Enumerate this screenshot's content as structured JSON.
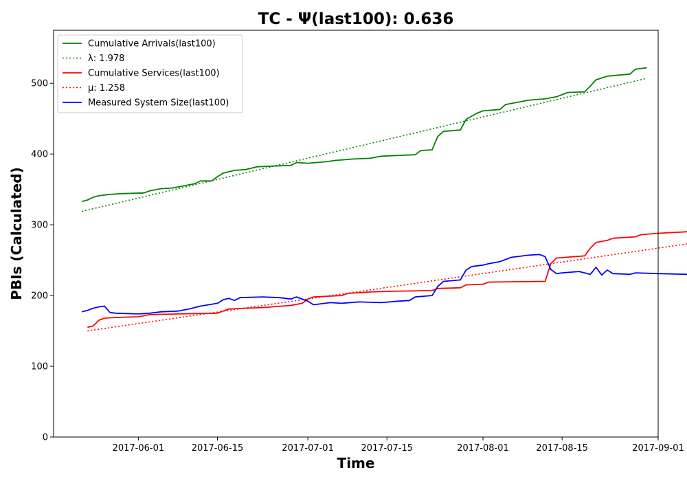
{
  "chart_data": {
    "type": "line",
    "title": "TC -  Ψ(last100): 0.636",
    "xlabel": "Time",
    "ylabel": "PBIs (Calculated)",
    "xlim": [
      "2017-05-17",
      "2017-09-01"
    ],
    "ylim": [
      0,
      575
    ],
    "x_ticks": [
      "2017-06-01",
      "2017-06-15",
      "2017-07-01",
      "2017-07-15",
      "2017-08-01",
      "2017-08-15",
      "2017-09-01"
    ],
    "y_ticks": [
      0,
      100,
      200,
      300,
      400,
      500
    ],
    "grid": false,
    "legend_position": "top-left",
    "legend": [
      {
        "label": "Cumulative Arrivals(last100)",
        "color": "#008000",
        "style": "solid"
      },
      {
        "label": "λ: 1.978",
        "color": "#008000",
        "style": "dotted"
      },
      {
        "label": "Cumulative Services(last100)",
        "color": "#ff0000",
        "style": "solid"
      },
      {
        "label": "μ: 1.258",
        "color": "#ff0000",
        "style": "dotted"
      },
      {
        "label": "Measured System Size(last100)",
        "color": "#0000ff",
        "style": "solid"
      }
    ],
    "series": [
      {
        "name": "Cumulative Arrivals(last100)",
        "color": "#008000",
        "style": "solid",
        "points": [
          [
            "2017-05-22",
            333
          ],
          [
            "2017-05-23",
            335
          ],
          [
            "2017-05-24",
            339
          ],
          [
            "2017-05-25",
            341
          ],
          [
            "2017-05-27",
            343
          ],
          [
            "2017-05-29",
            344
          ],
          [
            "2017-06-02",
            345
          ],
          [
            "2017-06-03",
            348
          ],
          [
            "2017-06-05",
            351
          ],
          [
            "2017-06-07",
            352
          ],
          [
            "2017-06-09",
            355
          ],
          [
            "2017-06-11",
            358
          ],
          [
            "2017-06-12",
            362
          ],
          [
            "2017-06-14",
            362
          ],
          [
            "2017-06-15",
            368
          ],
          [
            "2017-06-16",
            373
          ],
          [
            "2017-06-18",
            377
          ],
          [
            "2017-06-20",
            378
          ],
          [
            "2017-06-22",
            382
          ],
          [
            "2017-06-25",
            383
          ],
          [
            "2017-06-28",
            384
          ],
          [
            "2017-06-29",
            388
          ],
          [
            "2017-07-01",
            387
          ],
          [
            "2017-07-04",
            389
          ],
          [
            "2017-07-06",
            391
          ],
          [
            "2017-07-09",
            393
          ],
          [
            "2017-07-12",
            394
          ],
          [
            "2017-07-14",
            397
          ],
          [
            "2017-07-17",
            398
          ],
          [
            "2017-07-20",
            399
          ],
          [
            "2017-07-21",
            405
          ],
          [
            "2017-07-23",
            406
          ],
          [
            "2017-07-24",
            425
          ],
          [
            "2017-07-25",
            432
          ],
          [
            "2017-07-28",
            434
          ],
          [
            "2017-07-29",
            449
          ],
          [
            "2017-07-31",
            458
          ],
          [
            "2017-08-01",
            461
          ],
          [
            "2017-08-04",
            463
          ],
          [
            "2017-08-05",
            470
          ],
          [
            "2017-08-07",
            473
          ],
          [
            "2017-08-09",
            476
          ],
          [
            "2017-08-12",
            478
          ],
          [
            "2017-08-14",
            481
          ],
          [
            "2017-08-16",
            487
          ],
          [
            "2017-08-19",
            488
          ],
          [
            "2017-08-20",
            496
          ],
          [
            "2017-08-21",
            505
          ],
          [
            "2017-08-23",
            510
          ],
          [
            "2017-08-27",
            513
          ],
          [
            "2017-08-28",
            520
          ],
          [
            "2017-08-30",
            522
          ]
        ]
      },
      {
        "name": "λ: 1.978",
        "color": "#008000",
        "style": "dotted",
        "points": [
          [
            "2017-05-22",
            319
          ],
          [
            "2017-08-30",
            507
          ]
        ]
      },
      {
        "name": "Cumulative Services(last100)",
        "color": "#ff0000",
        "style": "solid",
        "points": [
          [
            "2017-05-23",
            155
          ],
          [
            "2017-05-24",
            157
          ],
          [
            "2017-05-25",
            165
          ],
          [
            "2017-05-26",
            168
          ],
          [
            "2017-05-28",
            169
          ],
          [
            "2017-06-01",
            170
          ],
          [
            "2017-06-03",
            173
          ],
          [
            "2017-06-08",
            174
          ],
          [
            "2017-06-15",
            175
          ],
          [
            "2017-06-16",
            178
          ],
          [
            "2017-06-17",
            181
          ],
          [
            "2017-06-23",
            183
          ],
          [
            "2017-06-28",
            186
          ],
          [
            "2017-06-30",
            189
          ],
          [
            "2017-07-01",
            195
          ],
          [
            "2017-07-02",
            198
          ],
          [
            "2017-07-07",
            200
          ],
          [
            "2017-07-08",
            203
          ],
          [
            "2017-07-12",
            205
          ],
          [
            "2017-07-16",
            206
          ],
          [
            "2017-07-23",
            207
          ],
          [
            "2017-07-24",
            210
          ],
          [
            "2017-07-28",
            211
          ],
          [
            "2017-07-29",
            215
          ],
          [
            "2017-08-01",
            216
          ],
          [
            "2017-08-02",
            219
          ],
          [
            "2017-08-12",
            220
          ],
          [
            "2017-08-13",
            245
          ],
          [
            "2017-08-14",
            253
          ],
          [
            "2017-08-19",
            256
          ],
          [
            "2017-08-20",
            267
          ],
          [
            "2017-08-21",
            275
          ],
          [
            "2017-08-23",
            278
          ],
          [
            "2017-08-24",
            281
          ],
          [
            "2017-08-28",
            283
          ],
          [
            "2017-08-29",
            286
          ],
          [
            "2017-09-01",
            288
          ],
          [
            "2017-09-06",
            290
          ],
          [
            "2017-09-07",
            295
          ]
        ]
      },
      {
        "name": "μ: 1.258",
        "color": "#ff0000",
        "style": "dotted",
        "points": [
          [
            "2017-05-23",
            150
          ],
          [
            "2017-09-07",
            274
          ]
        ]
      },
      {
        "name": "Measured System Size(last100)",
        "color": "#0000ff",
        "style": "solid",
        "points": [
          [
            "2017-05-22",
            177
          ],
          [
            "2017-05-23",
            179
          ],
          [
            "2017-05-24",
            182
          ],
          [
            "2017-05-25",
            184
          ],
          [
            "2017-05-26",
            185
          ],
          [
            "2017-05-27",
            176
          ],
          [
            "2017-05-28",
            175
          ],
          [
            "2017-06-01",
            174
          ],
          [
            "2017-06-03",
            175
          ],
          [
            "2017-06-05",
            177
          ],
          [
            "2017-06-08",
            178
          ],
          [
            "2017-06-10",
            181
          ],
          [
            "2017-06-12",
            185
          ],
          [
            "2017-06-15",
            189
          ],
          [
            "2017-06-16",
            194
          ],
          [
            "2017-06-17",
            196
          ],
          [
            "2017-06-18",
            193
          ],
          [
            "2017-06-19",
            197
          ],
          [
            "2017-06-23",
            198
          ],
          [
            "2017-06-26",
            197
          ],
          [
            "2017-06-28",
            195
          ],
          [
            "2017-06-29",
            198
          ],
          [
            "2017-07-01",
            192
          ],
          [
            "2017-07-02",
            187
          ],
          [
            "2017-07-05",
            190
          ],
          [
            "2017-07-07",
            189
          ],
          [
            "2017-07-10",
            191
          ],
          [
            "2017-07-14",
            190
          ],
          [
            "2017-07-17",
            192
          ],
          [
            "2017-07-19",
            193
          ],
          [
            "2017-07-20",
            198
          ],
          [
            "2017-07-23",
            200
          ],
          [
            "2017-07-24",
            213
          ],
          [
            "2017-07-25",
            220
          ],
          [
            "2017-07-28",
            222
          ],
          [
            "2017-07-29",
            236
          ],
          [
            "2017-07-30",
            241
          ],
          [
            "2017-08-01",
            243
          ],
          [
            "2017-08-02",
            245
          ],
          [
            "2017-08-04",
            248
          ],
          [
            "2017-08-05",
            251
          ],
          [
            "2017-08-06",
            254
          ],
          [
            "2017-08-09",
            257
          ],
          [
            "2017-08-11",
            258
          ],
          [
            "2017-08-12",
            255
          ],
          [
            "2017-08-13",
            237
          ],
          [
            "2017-08-14",
            231
          ],
          [
            "2017-08-15",
            232
          ],
          [
            "2017-08-18",
            234
          ],
          [
            "2017-08-20",
            230
          ],
          [
            "2017-08-21",
            240
          ],
          [
            "2017-08-22",
            229
          ],
          [
            "2017-08-23",
            236
          ],
          [
            "2017-08-24",
            231
          ],
          [
            "2017-08-27",
            230
          ],
          [
            "2017-08-28",
            232
          ],
          [
            "2017-09-01",
            231
          ],
          [
            "2017-09-06",
            230
          ],
          [
            "2017-09-07",
            227
          ]
        ]
      }
    ]
  }
}
